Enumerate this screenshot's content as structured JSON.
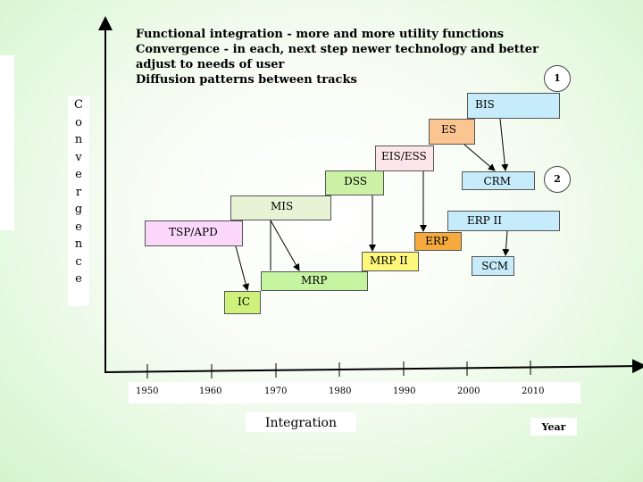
{
  "notes": [
    "Functional integration - more and more utility functions",
    "Convergence - in each, next step newer technology and better",
    "adjust to needs of user",
    "Diffusion patterns between tracks"
  ],
  "y_axis_label": [
    "C",
    "o",
    "n",
    "v",
    "e",
    "r",
    "g",
    "e",
    "n",
    "c",
    "e"
  ],
  "x_axis_label": "Integration",
  "x_axis_unit": "Year",
  "x_ticks": [
    "1950",
    "1960",
    "1970",
    "1980",
    "1990",
    "2000",
    "2010"
  ],
  "markers": {
    "one": "1",
    "two": "2"
  },
  "boxes": {
    "bis": {
      "label": "BIS",
      "color": "#c6ecfb"
    },
    "es": {
      "label": "ES",
      "color": "#fac590"
    },
    "eis": {
      "label": "EIS/ESS",
      "color": "#fde6ea"
    },
    "dss": {
      "label": "DSS",
      "color": "#cbf2a4"
    },
    "crm": {
      "label": "CRM",
      "color": "#c6ecfb"
    },
    "mis": {
      "label": "MIS",
      "color": "#e8f3d6"
    },
    "erp2": {
      "label": "ERP II",
      "color": "#c6ecfb"
    },
    "tsp": {
      "label": "TSP/APD",
      "color": "#fbd7fb"
    },
    "erp": {
      "label": "ERP",
      "color": "#f6a93c"
    },
    "mrp2": {
      "label": "MRP II",
      "color": "#fdf77c"
    },
    "scm": {
      "label": "SCM",
      "color": "#c6ecfb"
    },
    "mrp": {
      "label": "MRP",
      "color": "#c5f4a0"
    },
    "ic": {
      "label": "IC",
      "color": "#cff07a"
    }
  }
}
